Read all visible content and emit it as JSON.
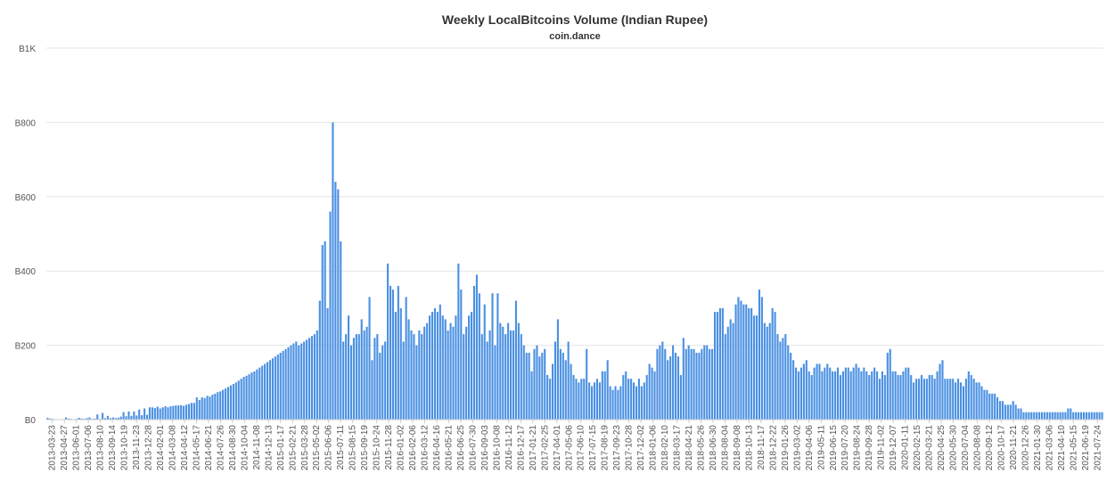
{
  "chart_data": {
    "type": "bar",
    "title": "Weekly LocalBitcoins Volume (Indian Rupee)",
    "subtitle": "coin.dance",
    "xlabel": "",
    "ylabel": "",
    "ylim": [
      0,
      1000
    ],
    "y_ticks": [
      {
        "value": 0,
        "label": "B0"
      },
      {
        "value": 200,
        "label": "B200"
      },
      {
        "value": 400,
        "label": "B400"
      },
      {
        "value": 600,
        "label": "B600"
      },
      {
        "value": 800,
        "label": "B800"
      },
      {
        "value": 1000,
        "label": "B1K"
      }
    ],
    "grid": true,
    "legend": "none",
    "bar_color": "#4a90e2",
    "x_tick_labels": [
      "2013-03-23",
      "2013-04-27",
      "2013-06-01",
      "2013-07-06",
      "2013-08-10",
      "2013-09-14",
      "2013-10-19",
      "2013-11-23",
      "2013-12-28",
      "2014-02-01",
      "2014-03-08",
      "2014-04-12",
      "2014-05-17",
      "2014-06-21",
      "2014-07-26",
      "2014-08-30",
      "2014-10-04",
      "2014-11-08",
      "2014-12-13",
      "2015-01-17",
      "2015-02-21",
      "2015-03-28",
      "2015-05-02",
      "2015-06-06",
      "2015-07-11",
      "2015-08-15",
      "2015-09-19",
      "2015-10-24",
      "2015-11-28",
      "2016-01-02",
      "2016-02-06",
      "2016-03-12",
      "2016-04-16",
      "2016-05-21",
      "2016-06-25",
      "2016-07-30",
      "2016-09-03",
      "2016-10-08",
      "2016-11-12",
      "2016-12-17",
      "2017-01-21",
      "2017-02-25",
      "2017-04-01",
      "2017-05-06",
      "2017-06-10",
      "2017-07-15",
      "2017-08-19",
      "2017-09-23",
      "2017-10-28",
      "2017-12-02",
      "2018-01-06",
      "2018-02-10",
      "2018-03-17",
      "2018-04-21",
      "2018-05-26",
      "2018-06-30",
      "2018-08-04",
      "2018-09-08",
      "2018-10-13",
      "2018-11-17",
      "2018-12-22",
      "2019-01-26",
      "2019-03-02",
      "2019-04-06",
      "2019-05-11",
      "2019-06-15",
      "2019-07-20",
      "2019-08-24",
      "2019-09-28",
      "2019-11-02",
      "2019-12-07",
      "2020-01-11",
      "2020-02-15",
      "2020-03-21",
      "2020-04-25",
      "2020-05-30",
      "2020-07-04",
      "2020-08-08",
      "2020-09-12",
      "2020-10-17",
      "2020-11-21",
      "2020-12-26",
      "2021-01-30",
      "2021-03-06",
      "2021-04-10",
      "2021-05-15",
      "2021-06-19",
      "2021-07-24"
    ],
    "values": [
      5,
      3,
      2,
      0,
      1,
      0,
      1,
      6,
      3,
      2,
      0,
      2,
      5,
      3,
      2,
      4,
      6,
      2,
      3,
      14,
      2,
      18,
      4,
      10,
      4,
      6,
      4,
      5,
      8,
      20,
      9,
      22,
      10,
      22,
      11,
      27,
      12,
      30,
      13,
      33,
      33,
      31,
      35,
      30,
      33,
      36,
      33,
      36,
      37,
      38,
      38,
      39,
      37,
      40,
      42,
      45,
      45,
      60,
      53,
      60,
      58,
      64,
      62,
      67,
      70,
      74,
      76,
      80,
      84,
      88,
      92,
      96,
      100,
      105,
      110,
      115,
      118,
      122,
      127,
      130,
      135,
      140,
      145,
      150,
      155,
      160,
      165,
      170,
      175,
      180,
      185,
      190,
      195,
      200,
      205,
      210,
      200,
      205,
      210,
      215,
      220,
      225,
      230,
      240,
      320,
      470,
      480,
      300,
      560,
      800,
      640,
      620,
      480,
      210,
      230,
      280,
      200,
      220,
      230,
      230,
      270,
      240,
      250,
      330,
      160,
      220,
      230,
      180,
      200,
      210,
      420,
      360,
      350,
      290,
      360,
      300,
      210,
      330,
      270,
      240,
      230,
      200,
      240,
      230,
      250,
      260,
      280,
      290,
      300,
      290,
      310,
      280,
      270,
      240,
      260,
      250,
      280,
      420,
      350,
      230,
      250,
      280,
      290,
      360,
      390,
      340,
      230,
      310,
      210,
      240,
      340,
      200,
      340,
      260,
      250,
      230,
      260,
      240,
      240,
      320,
      260,
      230,
      200,
      180,
      180,
      130,
      190,
      200,
      170,
      180,
      190,
      120,
      110,
      150,
      210,
      270,
      190,
      180,
      160,
      210,
      150,
      120,
      110,
      100,
      110,
      110,
      190,
      100,
      90,
      100,
      110,
      100,
      130,
      130,
      160,
      90,
      80,
      90,
      80,
      90,
      120,
      130,
      110,
      110,
      100,
      90,
      110,
      90,
      100,
      120,
      150,
      140,
      130,
      190,
      200,
      210,
      190,
      160,
      170,
      200,
      180,
      170,
      120,
      220,
      190,
      200,
      190,
      190,
      180,
      180,
      190,
      200,
      200,
      190,
      190,
      290,
      290,
      300,
      300,
      230,
      250,
      270,
      260,
      310,
      330,
      320,
      310,
      310,
      300,
      300,
      280,
      280,
      350,
      330,
      260,
      250,
      260,
      300,
      290,
      230,
      210,
      220,
      230,
      200,
      180,
      160,
      140,
      130,
      140,
      150,
      160,
      130,
      120,
      140,
      150,
      150,
      130,
      140,
      150,
      140,
      130,
      130,
      140,
      120,
      130,
      140,
      140,
      130,
      140,
      150,
      140,
      130,
      140,
      130,
      120,
      130,
      140,
      130,
      110,
      130,
      120,
      180,
      190,
      130,
      130,
      120,
      120,
      130,
      140,
      140,
      120,
      100,
      110,
      110,
      120,
      110,
      110,
      120,
      120,
      110,
      130,
      150,
      160,
      110,
      110,
      110,
      110,
      100,
      110,
      100,
      90,
      110,
      130,
      120,
      110,
      100,
      100,
      90,
      80,
      80,
      70,
      70,
      70,
      60,
      50,
      50,
      40,
      40,
      40,
      50,
      40,
      30,
      30,
      20,
      20,
      20,
      20,
      20,
      20,
      20,
      20,
      20,
      20,
      20,
      20,
      20,
      20,
      20,
      20,
      20,
      30,
      30,
      20,
      20,
      20,
      20,
      20,
      20,
      20,
      20,
      20,
      20,
      20,
      20
    ]
  }
}
